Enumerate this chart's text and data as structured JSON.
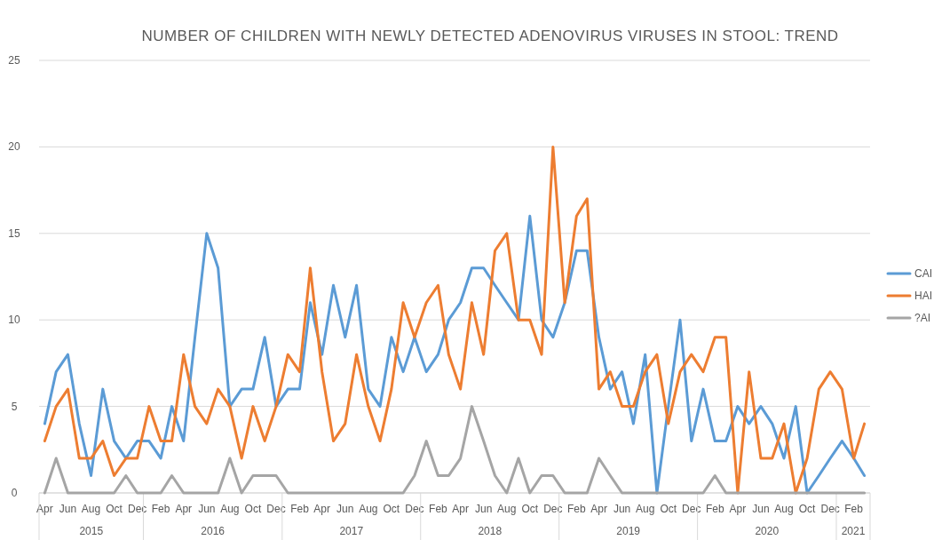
{
  "chart_data": {
    "type": "line",
    "title": "NUMBER OF CHILDREN WITH NEWLY DETECTED ADENOVIRUS VIRUSES IN STOOL: TREND",
    "x": [
      "2015-04",
      "2015-05",
      "2015-06",
      "2015-07",
      "2015-08",
      "2015-09",
      "2015-10",
      "2015-11",
      "2015-12",
      "2016-01",
      "2016-02",
      "2016-03",
      "2016-04",
      "2016-05",
      "2016-06",
      "2016-07",
      "2016-08",
      "2016-09",
      "2016-10",
      "2016-11",
      "2016-12",
      "2017-01",
      "2017-02",
      "2017-03",
      "2017-04",
      "2017-05",
      "2017-06",
      "2017-07",
      "2017-08",
      "2017-09",
      "2017-10",
      "2017-11",
      "2017-12",
      "2018-01",
      "2018-02",
      "2018-03",
      "2018-04",
      "2018-05",
      "2018-06",
      "2018-07",
      "2018-08",
      "2018-09",
      "2018-10",
      "2018-11",
      "2018-12",
      "2019-01",
      "2019-02",
      "2019-03",
      "2019-04",
      "2019-05",
      "2019-06",
      "2019-07",
      "2019-08",
      "2019-09",
      "2019-10",
      "2019-11",
      "2019-12",
      "2020-01",
      "2020-02",
      "2020-03",
      "2020-04",
      "2020-05",
      "2020-06",
      "2020-07",
      "2020-08",
      "2020-09",
      "2020-10",
      "2020-11",
      "2020-12",
      "2021-01",
      "2021-02",
      "2021-03"
    ],
    "series": [
      {
        "name": "CAI",
        "color": "#5b9bd5",
        "values": [
          4,
          7,
          8,
          4,
          1,
          6,
          3,
          2,
          3,
          3,
          2,
          5,
          3,
          9,
          15,
          13,
          5,
          6,
          6,
          9,
          5,
          6,
          6,
          11,
          8,
          12,
          9,
          12,
          6,
          5,
          9,
          7,
          9,
          7,
          8,
          10,
          11,
          13,
          13,
          12,
          11,
          10,
          16,
          10,
          9,
          11,
          14,
          14,
          9,
          6,
          7,
          4,
          8,
          0,
          5,
          10,
          3,
          6,
          3,
          3,
          5,
          4,
          5,
          4,
          2,
          5,
          0,
          1,
          2,
          3,
          2,
          1
        ]
      },
      {
        "name": "HAI",
        "color": "#ed7d31",
        "values": [
          3,
          5,
          6,
          2,
          2,
          3,
          1,
          2,
          2,
          5,
          3,
          3,
          8,
          5,
          4,
          6,
          5,
          2,
          5,
          3,
          5,
          8,
          7,
          13,
          7,
          3,
          4,
          8,
          5,
          3,
          6,
          11,
          9,
          11,
          12,
          8,
          6,
          11,
          8,
          14,
          15,
          10,
          10,
          8,
          20,
          11,
          16,
          17,
          6,
          7,
          5,
          5,
          7,
          8,
          4,
          7,
          8,
          7,
          9,
          9,
          0,
          7,
          2,
          2,
          4,
          0,
          2,
          6,
          7,
          6,
          2,
          4
        ]
      },
      {
        "name": "?AI",
        "color": "#a5a5a5",
        "values": [
          0,
          2,
          0,
          0,
          0,
          0,
          0,
          1,
          0,
          0,
          0,
          1,
          0,
          0,
          0,
          0,
          2,
          0,
          1,
          1,
          1,
          0,
          0,
          0,
          0,
          0,
          0,
          0,
          0,
          0,
          0,
          0,
          1,
          3,
          1,
          1,
          2,
          5,
          3,
          1,
          0,
          2,
          0,
          1,
          1,
          0,
          0,
          0,
          2,
          1,
          0,
          0,
          0,
          0,
          0,
          0,
          0,
          0,
          1,
          0,
          0,
          0,
          0,
          0,
          0,
          0,
          0,
          0,
          0,
          0,
          0,
          0
        ]
      }
    ],
    "xlim": [
      "2015-03-17",
      "2021-03-16"
    ],
    "xticks": [
      {
        "value": "2015-04",
        "label": "Apr"
      },
      {
        "value": "2015-06",
        "label": "Jun"
      },
      {
        "value": "2015-08",
        "label": "Aug"
      },
      {
        "value": "2015-10",
        "label": "Oct"
      },
      {
        "value": "2015-12",
        "label": "Dec"
      },
      {
        "value": "2016-02",
        "label": "Feb"
      },
      {
        "value": "2016-04",
        "label": "Apr"
      },
      {
        "value": "2016-06",
        "label": "Jun"
      },
      {
        "value": "2016-08",
        "label": "Aug"
      },
      {
        "value": "2016-10",
        "label": "Oct"
      },
      {
        "value": "2016-12",
        "label": "Dec"
      },
      {
        "value": "2017-02",
        "label": "Feb"
      },
      {
        "value": "2017-04",
        "label": "Apr"
      },
      {
        "value": "2017-06",
        "label": "Jun"
      },
      {
        "value": "2017-08",
        "label": "Aug"
      },
      {
        "value": "2017-10",
        "label": "Oct"
      },
      {
        "value": "2017-12",
        "label": "Dec"
      },
      {
        "value": "2018-02",
        "label": "Feb"
      },
      {
        "value": "2018-04",
        "label": "Apr"
      },
      {
        "value": "2018-06",
        "label": "Jun"
      },
      {
        "value": "2018-08",
        "label": "Aug"
      },
      {
        "value": "2018-10",
        "label": "Oct"
      },
      {
        "value": "2018-12",
        "label": "Dec"
      },
      {
        "value": "2019-02",
        "label": "Feb"
      },
      {
        "value": "2019-04",
        "label": "Apr"
      },
      {
        "value": "2019-06",
        "label": "Jun"
      },
      {
        "value": "2019-08",
        "label": "Aug"
      },
      {
        "value": "2019-10",
        "label": "Oct"
      },
      {
        "value": "2019-12",
        "label": "Dec"
      },
      {
        "value": "2020-02",
        "label": "Feb"
      },
      {
        "value": "2020-04",
        "label": "Apr"
      },
      {
        "value": "2020-06",
        "label": "Jun"
      },
      {
        "value": "2020-08",
        "label": "Aug"
      },
      {
        "value": "2020-10",
        "label": "Oct"
      },
      {
        "value": "2020-12",
        "label": "Dec"
      },
      {
        "value": "2021-02",
        "label": "Feb"
      }
    ],
    "annotations": [
      "2015",
      "2016",
      "2017",
      "2018",
      "2019",
      "2020",
      "2021"
    ],
    "ylim": [
      0,
      25
    ],
    "yticks": [
      0,
      5,
      10,
      15,
      20,
      25
    ],
    "grid": "y",
    "legend": "right",
    "marker": "none",
    "line_style": "solid"
  }
}
